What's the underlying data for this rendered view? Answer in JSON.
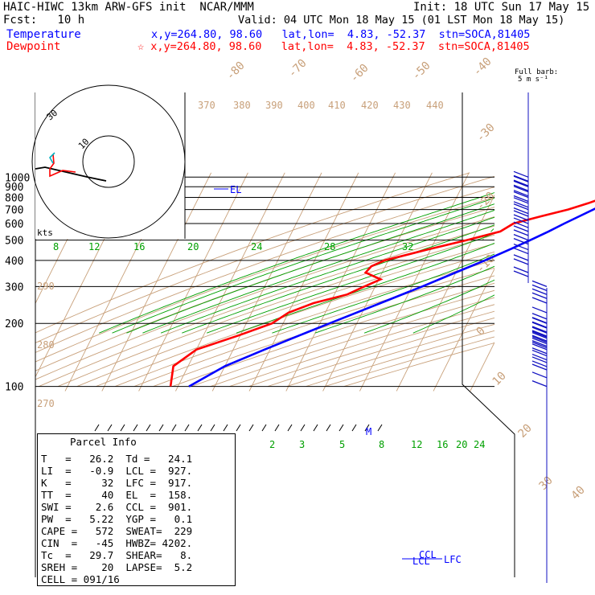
{
  "header": {
    "line1_left": "HAIC-HIWC 13km ARW-GFS init  NCAR/MMM",
    "line1_right": "Init: 18 UTC Sun 17 May 15",
    "line2_left": "Fcst:   10 h",
    "line2_right": "Valid: 04 UTC Mon 18 May 15 (01 LST Mon 18 May 15)",
    "temp_label": "Temperature",
    "temp_info": "x,y=264.80, 98.60   lat,lon=  4.83, -52.37  stn=SOCA,81405",
    "dew_label": "Dewpoint",
    "dew_info": "☆ x,y=264.80, 98.60   lat,lon=  4.83, -52.37  stn=SOCA,81405",
    "barb_legend_1": "Full barb:",
    "barb_legend_2": "5 m s⁻¹"
  },
  "colors": {
    "temperature": "#0000ff",
    "dewpoint": "#ff0000",
    "isotherm": "#c8a07a",
    "mixing_ratio": "#00a000",
    "wind": "#1010c0"
  },
  "chart_data": {
    "type": "line",
    "title": "Skew-T log-P sounding",
    "y_axis": {
      "scale": "log-pressure",
      "ticks": [
        "100",
        "200",
        "300",
        "400",
        "500",
        "600",
        "700",
        "800",
        "900",
        "1000"
      ]
    },
    "isotherm_labels": [
      "-80",
      "-70",
      "-60",
      "-50",
      "-40",
      "-30",
      "-20",
      "-10",
      "0",
      "10",
      "20",
      "30",
      "40"
    ],
    "theta_labels_top": [
      "370",
      "380",
      "390",
      "400",
      "410",
      "420",
      "430",
      "440"
    ],
    "theta_labels_left": [
      "290",
      "280",
      "270"
    ],
    "mixing_ratio_labels_upper": [
      "8",
      "12",
      "16",
      "20",
      "24",
      "28",
      "32"
    ],
    "mixing_ratio_labels_lower": [
      "2",
      "3",
      "5",
      "8",
      "12",
      "16",
      "20",
      "24"
    ],
    "temperature_profile_labels": [
      "EL",
      "M",
      "LFC",
      "LCL",
      "CCL"
    ],
    "hodograph_labels": [
      "30",
      "10",
      "kts"
    ],
    "series": [
      {
        "name": "Temperature",
        "color": "#0000ff",
        "points": [
          [
            1000,
            26.2
          ],
          [
            975,
            24.6
          ],
          [
            950,
            22.7
          ],
          [
            925,
            21.5
          ],
          [
            900,
            20.0
          ],
          [
            850,
            17.2
          ],
          [
            800,
            14.4
          ],
          [
            750,
            11.4
          ],
          [
            700,
            8.8
          ],
          [
            650,
            5.9
          ],
          [
            600,
            2.8
          ],
          [
            550,
            -0.4
          ],
          [
            500,
            -4.2
          ],
          [
            450,
            -8.6
          ],
          [
            400,
            -13.8
          ],
          [
            350,
            -20.1
          ],
          [
            300,
            -27.3
          ],
          [
            250,
            -36.3
          ],
          [
            200,
            -47.4
          ],
          [
            175,
            -54.0
          ],
          [
            150,
            -61.5
          ],
          [
            125,
            -70.0
          ],
          [
            110,
            -74.0
          ],
          [
            100,
            -77.0
          ]
        ]
      },
      {
        "name": "Dewpoint",
        "color": "#ff0000",
        "points": [
          [
            1000,
            24.1
          ],
          [
            975,
            23.4
          ],
          [
            950,
            21.0
          ],
          [
            925,
            19.5
          ],
          [
            900,
            16.8
          ],
          [
            850,
            13.9
          ],
          [
            800,
            10.2
          ],
          [
            750,
            6.5
          ],
          [
            700,
            1.9
          ],
          [
            650,
            -4.5
          ],
          [
            600,
            -11.0
          ],
          [
            550,
            -13.5
          ],
          [
            500,
            -21.5
          ],
          [
            450,
            -31.0
          ],
          [
            400,
            -41.0
          ],
          [
            375,
            -43.8
          ],
          [
            350,
            -44.5
          ],
          [
            325,
            -39.5
          ],
          [
            300,
            -43.0
          ],
          [
            275,
            -46.5
          ],
          [
            250,
            -54.5
          ],
          [
            225,
            -60.0
          ],
          [
            200,
            -63.0
          ],
          [
            175,
            -70.5
          ],
          [
            150,
            -80.0
          ],
          [
            125,
            -84.0
          ],
          [
            100,
            -82.0
          ]
        ]
      }
    ],
    "wind_profile": [
      {
        "p": 1000,
        "barbs": 2
      },
      {
        "p": 950,
        "barbs": 2
      },
      {
        "p": 900,
        "barbs": 2
      },
      {
        "p": 850,
        "barbs": 2
      },
      {
        "p": 800,
        "barbs": 2
      },
      {
        "p": 750,
        "barbs": 2
      },
      {
        "p": 700,
        "barbs": 2
      },
      {
        "p": 650,
        "barbs": 2
      },
      {
        "p": 600,
        "barbs": 2
      },
      {
        "p": 550,
        "barbs": 2
      },
      {
        "p": 500,
        "barbs": 2
      },
      {
        "p": 450,
        "barbs": 2
      },
      {
        "p": 400,
        "barbs": 2
      },
      {
        "p": 350,
        "barbs": 2
      },
      {
        "p": 300,
        "barbs": 2
      },
      {
        "p": 275,
        "barbs": 2
      },
      {
        "p": 250,
        "barbs": 1
      },
      {
        "p": 225,
        "barbs": 1
      },
      {
        "p": 210,
        "barbs": 2
      },
      {
        "p": 200,
        "barbs": 2
      },
      {
        "p": 190,
        "barbs": 3
      },
      {
        "p": 180,
        "barbs": 3
      },
      {
        "p": 170,
        "barbs": 3
      },
      {
        "p": 160,
        "barbs": 2
      },
      {
        "p": 150,
        "barbs": 2
      },
      {
        "p": 140,
        "barbs": 2
      },
      {
        "p": 130,
        "barbs": 2
      },
      {
        "p": 120,
        "barbs": 1
      },
      {
        "p": 110,
        "barbs": 1
      },
      {
        "p": 100,
        "barbs": 1
      }
    ]
  },
  "parcel_info": {
    "title": "Parcel Info",
    "rows": [
      "T   =   26.2  Td =   24.1",
      "LI  =   -0.9  LCL =  927.",
      "K   =     32  LFC =  917.",
      "TT  =     40  EL  =  158.",
      "SWI =    2.6  CCL =  901.",
      "PW  =   5.22  YGP =   0.1",
      "CAPE =   572  SWEAT=  229",
      "CIN  =   -45  HWBZ= 4202.",
      "Tc  =   29.7  SHEAR=   8.",
      "SREH =    20  LAPSE=  5.2",
      "CELL = 091/16"
    ]
  }
}
